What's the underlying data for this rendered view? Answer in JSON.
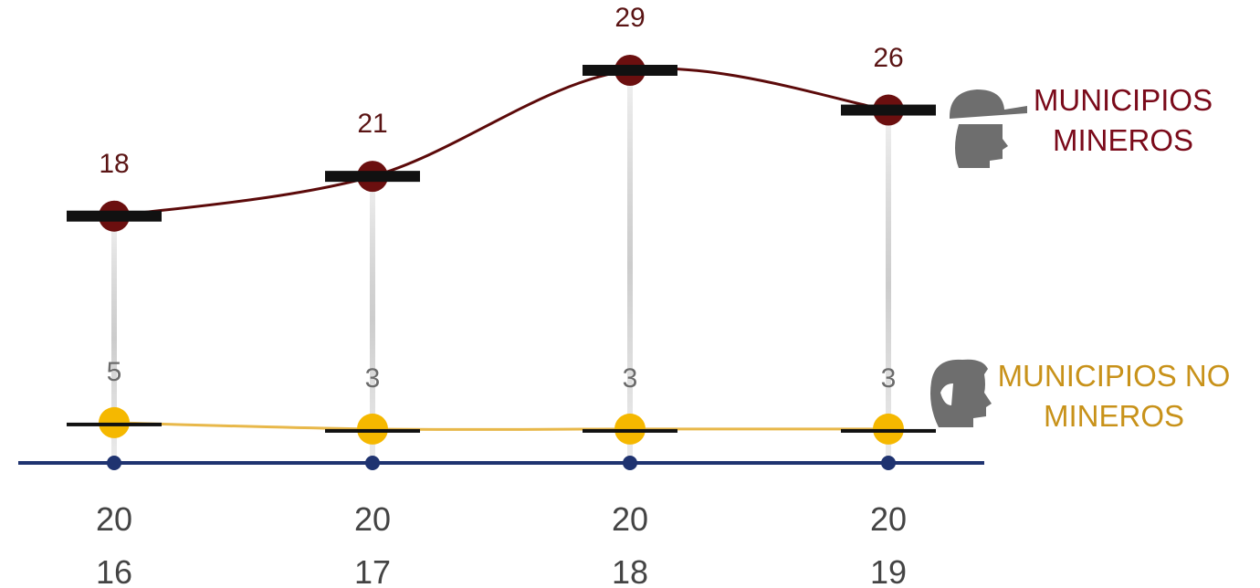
{
  "chart_data": {
    "type": "line",
    "categories": [
      "2016",
      "2017",
      "2018",
      "2019"
    ],
    "series": [
      {
        "name": "MUNICIPIOS MINEROS",
        "color": "#5c0a0a",
        "marker_color": "#6b0f0f",
        "label_color": "#5a1414",
        "legend_color": "#7a0a1a",
        "values": [
          18,
          21,
          29,
          26
        ]
      },
      {
        "name": "MUNICIPIOS NO MINEROS",
        "color": "#e8b84a",
        "marker_color": "#f5b800",
        "label_color": "#6b6b6b",
        "legend_color": "#c8921a",
        "axis": "y2",
        "values": [
          5,
          3,
          3,
          3
        ]
      }
    ],
    "ylim": [
      0,
      29
    ],
    "y2lim": [
      -5,
      115
    ],
    "axis_color": "#1f3370"
  }
}
